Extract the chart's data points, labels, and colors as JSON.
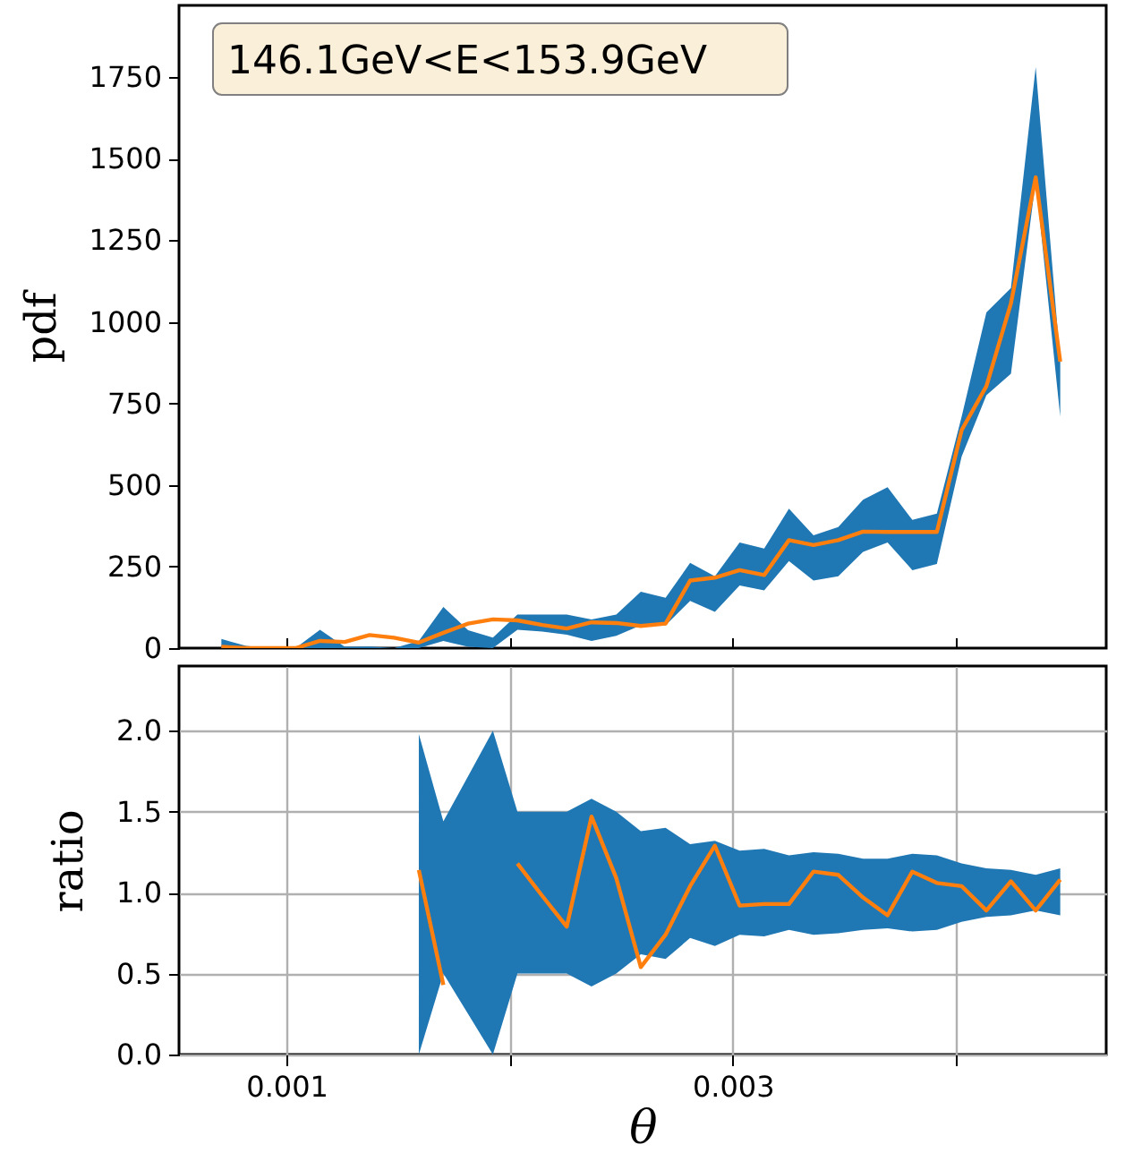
{
  "chart_data": [
    {
      "type": "line",
      "ylabel": "pdf",
      "annotations": [
        "146.1GeV<E<153.9GeV"
      ],
      "colors": [
        "#1f77b4"
      ],
      "x": [
        0.000708,
        0.000819,
        0.000929,
        0.00104,
        0.00115,
        0.001261,
        0.001372,
        0.001482,
        0.001593,
        0.001703,
        0.001814,
        0.001925,
        0.002035,
        0.002146,
        0.002256,
        0.002367,
        0.002478,
        0.002588,
        0.002699,
        0.002809,
        0.00292,
        0.003031,
        0.003141,
        0.003252,
        0.003362,
        0.003473,
        0.003584,
        0.003694,
        0.003805,
        0.003915,
        0.004026,
        0.004137,
        0.004247,
        0.004358,
        0.004468
      ],
      "series": [
        {
          "color": "#ff7f0e",
          "values": [
            4,
            0,
            0,
            0,
            22,
            19,
            40,
            32,
            17,
            47,
            75,
            88,
            85,
            71,
            60,
            79,
            77,
            68,
            75,
            207,
            216,
            239,
            224,
            331,
            316,
            331,
            357,
            356,
            356,
            356,
            668,
            803,
            1057,
            1443,
            878
          ],
          "lower": [
            0,
            0,
            0,
            0,
            0,
            0,
            0,
            0,
            0,
            22,
            4,
            0,
            56,
            51,
            41,
            22,
            38,
            70,
            70,
            145,
            111,
            192,
            177,
            267,
            207,
            220,
            295,
            324,
            239,
            258,
            587,
            775,
            841,
            1433,
            709
          ],
          "upper": [
            28,
            7,
            0,
            0,
            56,
            4,
            5,
            0,
            22,
            126,
            55,
            32,
            103,
            103,
            103,
            88,
            103,
            173,
            154,
            261,
            220,
            324,
            305,
            427,
            346,
            371,
            455,
            493,
            393,
            412,
            709,
            1029,
            1104,
            1781,
            880
          ]
        }
      ],
      "xlim": [
        0.000518,
        0.004674
      ],
      "xticks": [
        {
          "value": 0.001,
          "label": null
        },
        {
          "value": 0.002,
          "label": null
        },
        {
          "value": 0.003,
          "label": null
        },
        {
          "value": 0.004,
          "label": null
        }
      ],
      "ylim": [
        0,
        1970
      ],
      "yticks": [
        0,
        250,
        500,
        750,
        1000,
        1250,
        1500,
        1750
      ],
      "tick_labels": "y",
      "grid": false
    },
    {
      "type": "line",
      "xlabel": "θ",
      "ylabel": "ratio",
      "colors": [
        "#1f77b4"
      ],
      "x": [
        0.001593,
        0.001703,
        0.001814,
        0.001925,
        0.002035,
        0.002146,
        0.002256,
        0.002367,
        0.002478,
        0.002588,
        0.002699,
        0.002809,
        0.00292,
        0.003031,
        0.003141,
        0.003252,
        0.003362,
        0.003473,
        0.003584,
        0.003694,
        0.003805,
        0.003915,
        0.004026,
        0.004137,
        0.004247,
        0.004358,
        0.004468
      ],
      "series": [
        {
          "color": "#ff7f0e",
          "values": [
            1.14,
            0.43,
            null,
            null,
            1.18,
            0.98,
            0.79,
            1.47,
            1.09,
            0.54,
            0.74,
            1.04,
            1.29,
            0.92,
            0.93,
            0.93,
            1.13,
            1.11,
            0.97,
            0.86,
            1.13,
            1.06,
            1.04,
            0.89,
            1.07,
            0.89,
            1.08
          ],
          "lower": [
            0,
            0.5,
            0.25,
            0,
            0.5,
            0.5,
            0.5,
            0.42,
            0.5,
            0.62,
            0.59,
            0.72,
            0.67,
            0.74,
            0.73,
            0.77,
            0.74,
            0.75,
            0.77,
            0.78,
            0.76,
            0.77,
            0.82,
            0.85,
            0.86,
            0.89,
            0.86
          ],
          "upper": [
            1.98,
            1.44,
            1.72,
            2,
            1.5,
            1.5,
            1.5,
            1.58,
            1.5,
            1.38,
            1.4,
            1.3,
            1.32,
            1.26,
            1.27,
            1.23,
            1.25,
            1.24,
            1.21,
            1.21,
            1.24,
            1.23,
            1.18,
            1.15,
            1.14,
            1.11,
            1.15
          ]
        }
      ],
      "xlim": [
        0.000518,
        0.004674
      ],
      "xticks": [
        0.001,
        {
          "value": 0.002,
          "label": null
        },
        0.003,
        {
          "value": 0.004,
          "label": null
        }
      ],
      "ylim": [
        0,
        2.4
      ],
      "yticks": [
        {
          "value": 0,
          "label": "0.0"
        },
        {
          "value": 0.5,
          "label": "0.5"
        },
        {
          "value": 1,
          "label": "1.0"
        },
        {
          "value": 1.5,
          "label": "1.5"
        },
        {
          "value": 2,
          "label": "2.0"
        }
      ],
      "grid": true
    }
  ]
}
